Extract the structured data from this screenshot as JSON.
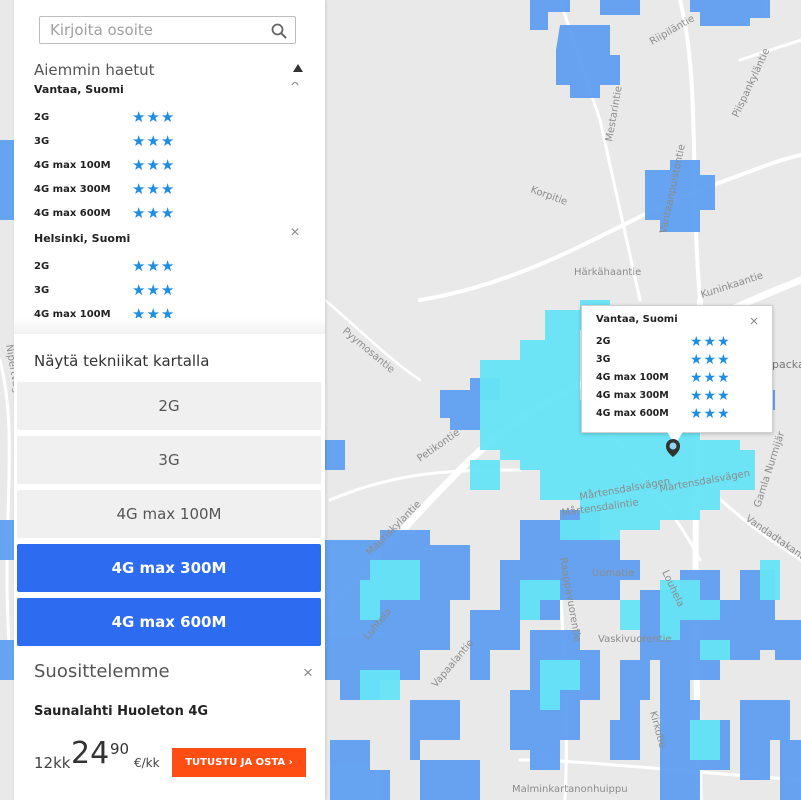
{
  "search": {
    "placeholder": "Kirjoita osoite",
    "value": ""
  },
  "history": {
    "title": "Aiemmin haetut",
    "locations": [
      {
        "name": "Vantaa, Suomi",
        "techs": [
          {
            "name": "2G",
            "rating": "★★★"
          },
          {
            "name": "3G",
            "rating": "★★★"
          },
          {
            "name": "4G max 100M",
            "rating": "★★★"
          },
          {
            "name": "4G max 300M",
            "rating": "★★★"
          },
          {
            "name": "4G max 600M",
            "rating": "★★★"
          }
        ]
      },
      {
        "name": "Helsinki, Suomi",
        "techs": [
          {
            "name": "2G",
            "rating": "★★★"
          },
          {
            "name": "3G",
            "rating": "★★★"
          },
          {
            "name": "4G max 100M",
            "rating": "★★★"
          }
        ]
      }
    ]
  },
  "techs": {
    "title": "Näytä tekniikat kartalla",
    "buttons": [
      {
        "label": "2G",
        "active": false
      },
      {
        "label": "3G",
        "active": false
      },
      {
        "label": "4G max 100M",
        "active": false
      },
      {
        "label": "4G max 300M",
        "active": true
      },
      {
        "label": "4G max 600M",
        "active": true
      }
    ]
  },
  "recommendation": {
    "title": "Suosittelemme",
    "product": "Saunalahti Huoleton 4G",
    "term": "12kk",
    "price_int": "24",
    "price_dec": "90",
    "price_unit": "€/kk",
    "button": "TUTUSTU JA OSTA ›"
  },
  "popup": {
    "title": "Vantaa, Suomi",
    "techs": [
      {
        "name": "2G",
        "rating": "★★★"
      },
      {
        "name": "3G",
        "rating": "★★★"
      },
      {
        "name": "4G max 100M",
        "rating": "★★★"
      },
      {
        "name": "4G max 300M",
        "rating": "★★★"
      },
      {
        "name": "4G max 600M",
        "rating": "★★★"
      }
    ]
  },
  "map": {
    "streets": [
      "Riipiläntie",
      "Piispankyläntie",
      "Mestarintie",
      "Korpitie",
      "Vantaanpuistontie",
      "Härkähaantie",
      "Kuninkaantie",
      "Pyymosantie",
      "Petikontie",
      "Mårtensdalsvägen",
      "Mårtensdalintie",
      "Martensdalsvägen",
      "Gamla Nurmijär",
      "Vandadtakantie",
      "Mauriskylantie",
      "Raappavuorentie",
      "Uomatie",
      "Louhela",
      "Luhtela",
      "Vaskivuorentie",
      "Vapaalantie",
      "Kirkotie",
      "Malminkartanonhuippu",
      "Nipertvagen",
      "packa"
    ],
    "colors": {
      "background": "#e9e9e9",
      "road": "#ffffff",
      "coverage_4g300": "#5f9ff0",
      "coverage_4g600": "#66e4f6",
      "pin": "#333333"
    }
  },
  "colors": {
    "accent_blue": "#2d6cf0",
    "star_blue": "#1e8fe0",
    "cta_orange": "#ff4e14"
  }
}
